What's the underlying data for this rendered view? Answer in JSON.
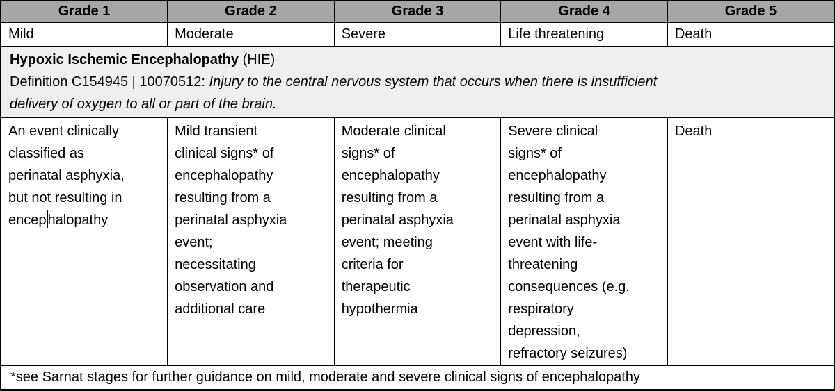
{
  "colors": {
    "header_bg": "#a6a6a6",
    "definition_bg": "#efefef",
    "border": "#000000",
    "text": "#000000",
    "background": "#ffffff"
  },
  "header": {
    "grades": [
      "Grade 1",
      "Grade 2",
      "Grade 3",
      "Grade 4",
      "Grade 5"
    ],
    "severities": [
      "Mild",
      "Moderate",
      "Severe",
      "Life threatening",
      "Death"
    ]
  },
  "definition": {
    "term_bold": "Hypoxic Ischemic Encephalopathy",
    "term_suffix": "(HIE)",
    "codes_label": "Definition C154945 | 10070512:",
    "definition_italic": "Injury to the central nervous system that occurs when there is insufficient\ndelivery of oxygen to all or part of the brain."
  },
  "body": {
    "cells": [
      {
        "text_before_caret": "An event clinically\nclassified as\nperinatal asphyxia,\nbut not resulting in\nencep",
        "text_after_caret": "halopathy"
      },
      {
        "text": "Mild transient\nclinical signs* of\nencephalopathy\nresulting from a\nperinatal asphyxia\nevent;\nnecessitating\nobservation and\nadditional care"
      },
      {
        "text": "Moderate clinical\nsigns* of\nencephalopathy\nresulting from a\nperinatal asphyxia\nevent; meeting\ncriteria for\ntherapeutic\nhypothermia"
      },
      {
        "text": "Severe clinical\nsigns* of\nencephalopathy\nresulting from a\nperinatal asphyxia\nevent with life-\nthreatening\nconsequences (e.g.\nrespiratory\ndepression,\nrefractory seizures)"
      },
      {
        "text": "Death"
      }
    ]
  },
  "footnote": "*see Sarnat stages for further guidance on mild, moderate and severe clinical signs of encephalopathy"
}
